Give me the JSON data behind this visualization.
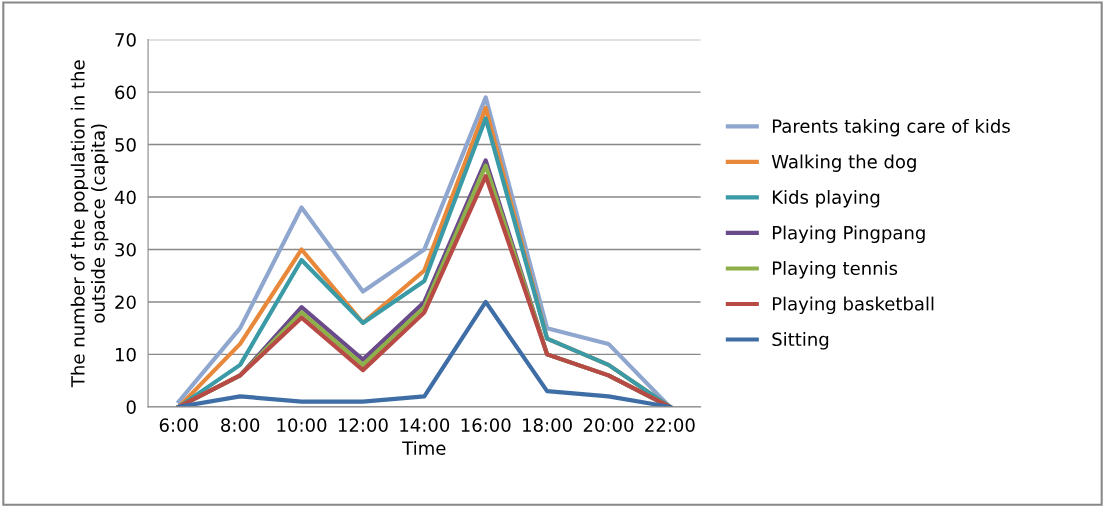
{
  "chart_data": {
    "type": "line",
    "xlabel": "Time",
    "ylabel": "The number of the population in the\noutside space (capita)",
    "categories": [
      "6:00",
      "8:00",
      "10:00",
      "12:00",
      "14:00",
      "16:00",
      "18:00",
      "20:00",
      "22:00"
    ],
    "series": [
      {
        "name": "Parents taking care of kids",
        "color": "#8fa6cf",
        "values": [
          1,
          15,
          38,
          22,
          30,
          59,
          15,
          12,
          0
        ]
      },
      {
        "name": "Walking the dog",
        "color": "#e8883a",
        "values": [
          0,
          12,
          30,
          16,
          26,
          57,
          13,
          8,
          0
        ]
      },
      {
        "name": "Kids playing",
        "color": "#3a9aa6",
        "values": [
          0,
          8,
          28,
          16,
          24,
          55,
          13,
          8,
          0
        ]
      },
      {
        "name": "Playing Pingpang",
        "color": "#6a4a8a",
        "values": [
          0,
          6,
          19,
          9,
          20,
          47,
          10,
          6,
          0
        ]
      },
      {
        "name": "Playing tennis",
        "color": "#8db04a",
        "values": [
          0,
          6,
          18,
          8,
          19,
          46,
          10,
          6,
          0
        ]
      },
      {
        "name": "Playing basketball",
        "color": "#b84a45",
        "values": [
          0,
          6,
          17,
          7,
          18,
          44,
          10,
          6,
          0
        ]
      },
      {
        "name": "Sitting",
        "color": "#3f6ea6",
        "values": [
          0,
          2,
          1,
          1,
          2,
          20,
          3,
          2,
          0
        ]
      }
    ],
    "ylim": [
      0,
      70
    ],
    "yticks": [
      0,
      10,
      20,
      30,
      40,
      50,
      60,
      70
    ],
    "grid": "y",
    "legend": "right",
    "marker": "none",
    "line_style": "solid"
  }
}
